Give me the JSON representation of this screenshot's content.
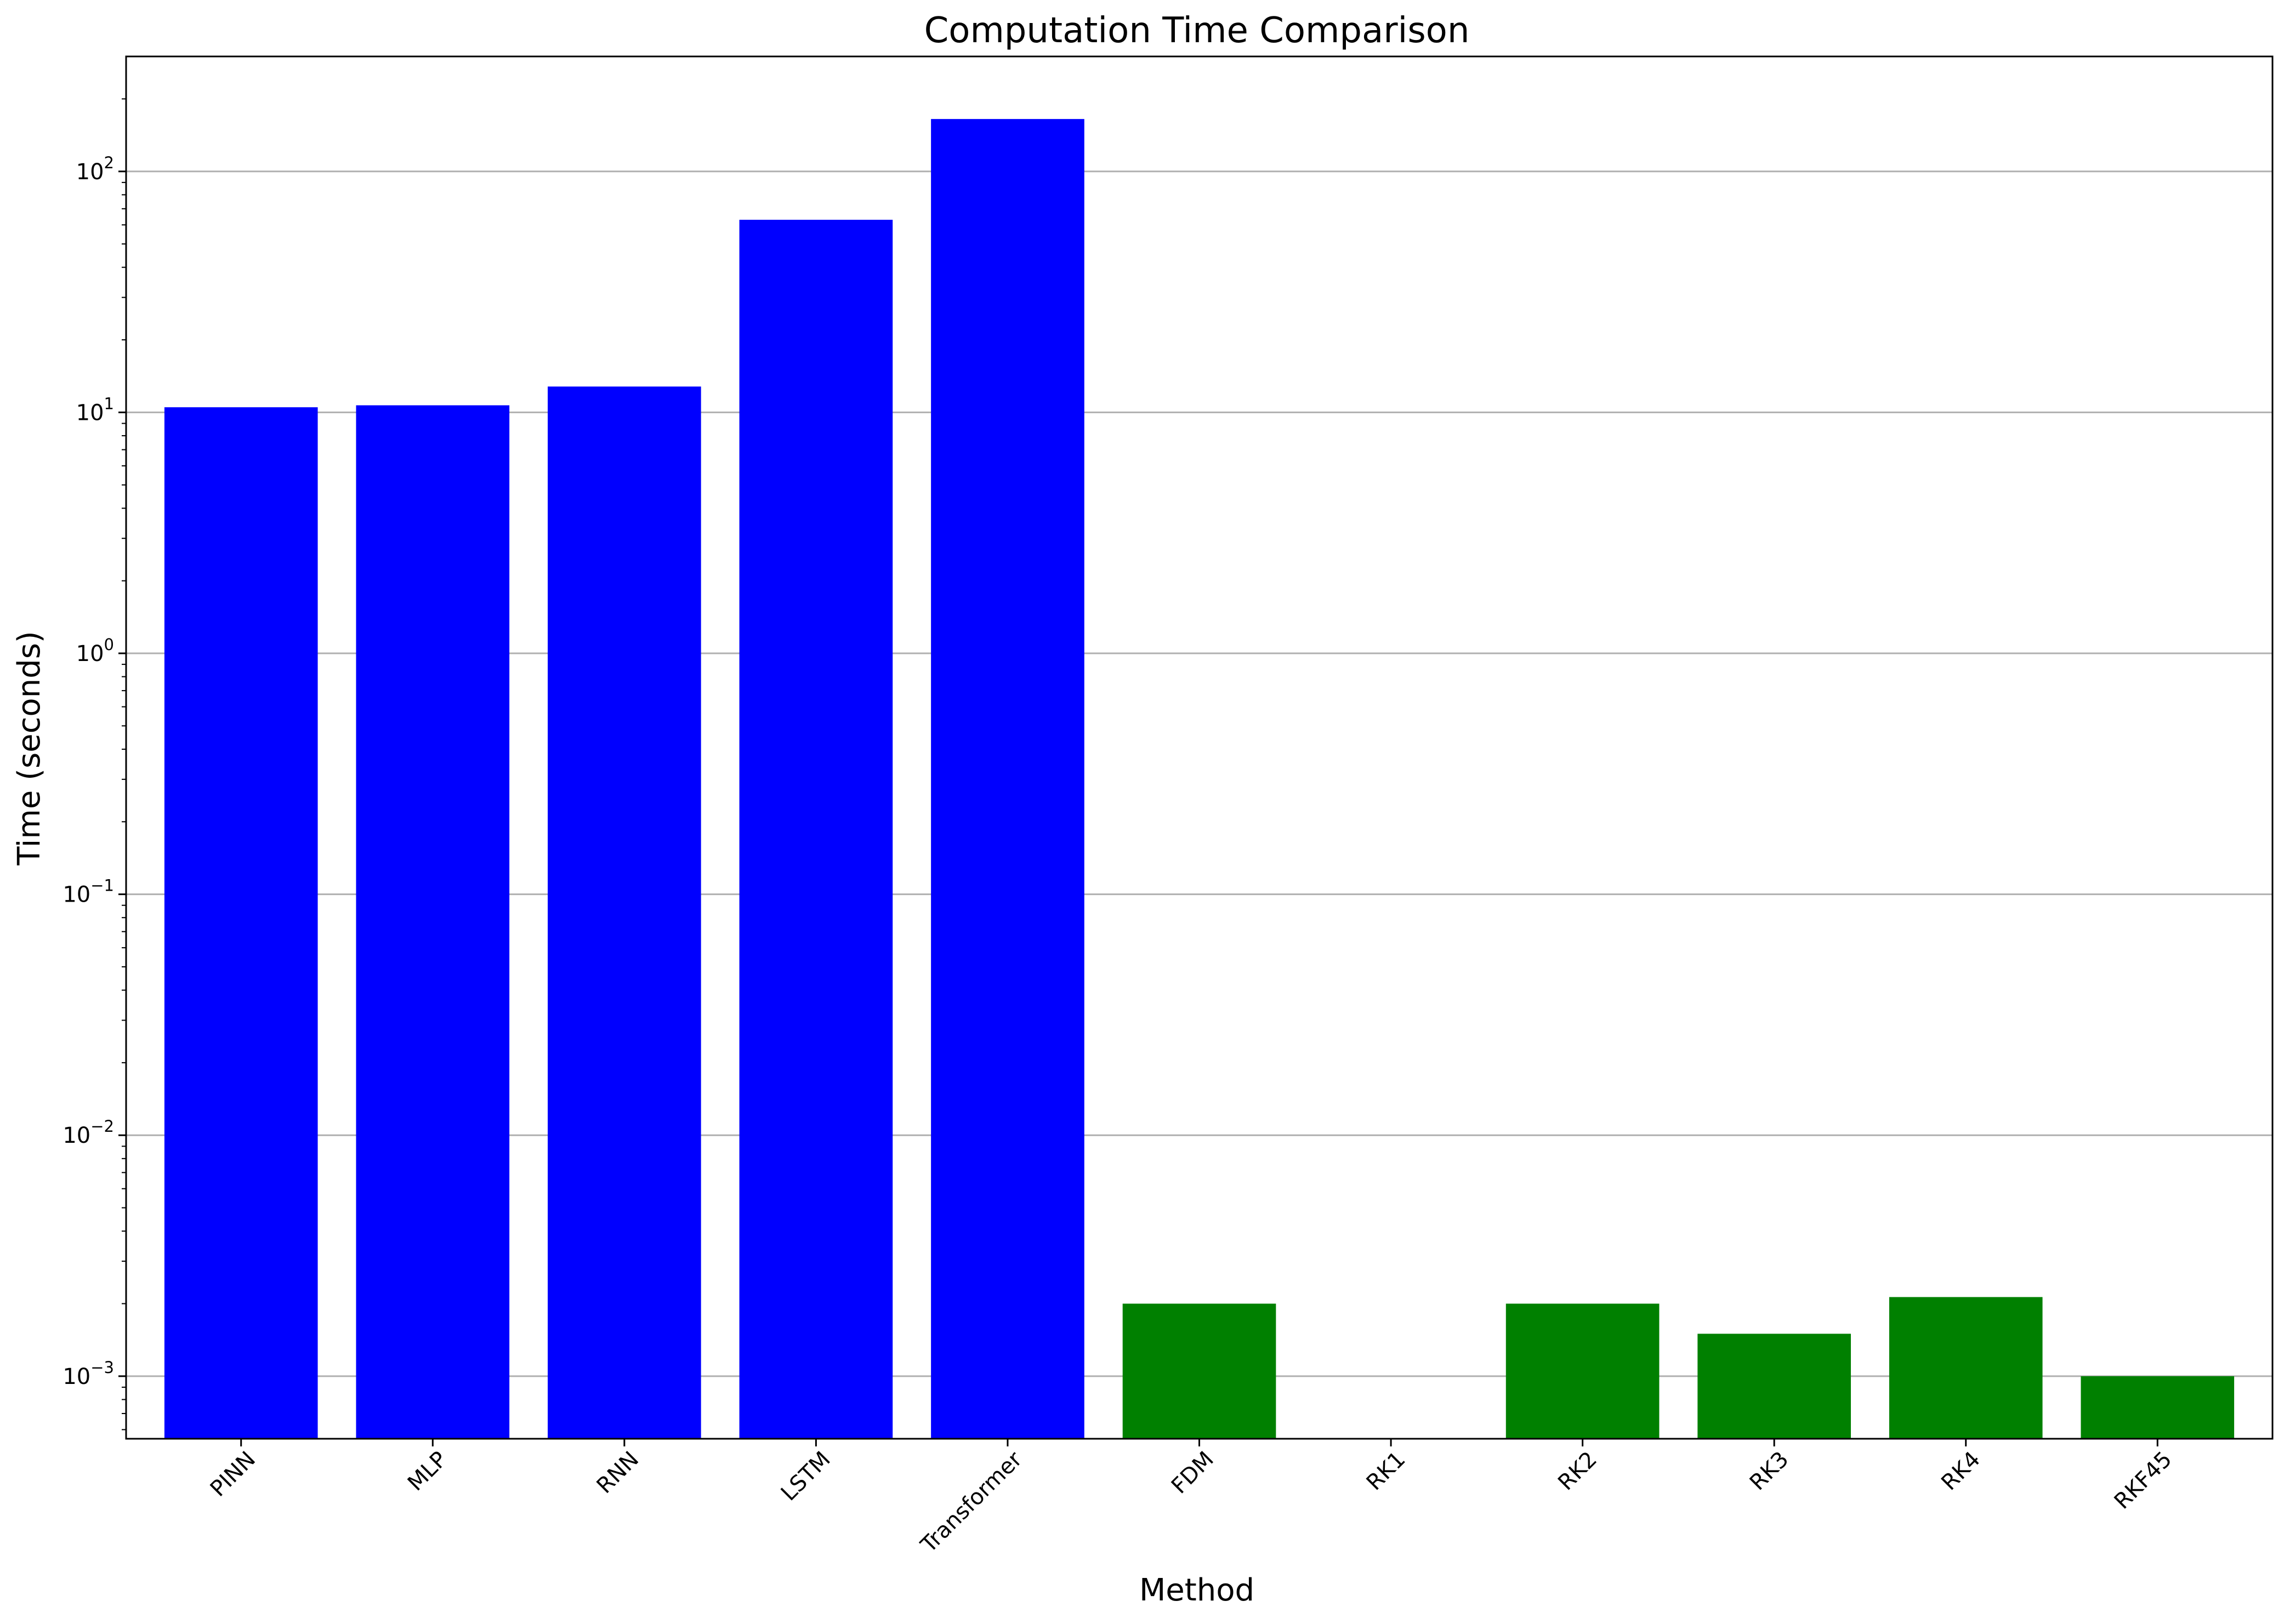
{
  "chart_data": {
    "type": "bar",
    "title": "Computation Time Comparison",
    "xlabel": "Method",
    "ylabel": "Time (seconds)",
    "yscale": "log",
    "ylim": [
      0.00055,
      300
    ],
    "grid": "y-major",
    "legend": "none",
    "categories": [
      "PINN",
      "MLP",
      "RNN",
      "LSTM",
      "Transformer",
      "FDM",
      "RK1",
      "RK2",
      "RK3",
      "RK4",
      "RKF45"
    ],
    "values": [
      10.5,
      10.7,
      12.8,
      63,
      165,
      0.002,
      0,
      0.002,
      0.0015,
      0.00213,
      0.001
    ],
    "bar_colors": [
      "#0000ff",
      "#0000ff",
      "#0000ff",
      "#0000ff",
      "#0000ff",
      "#008000",
      "#008000",
      "#008000",
      "#008000",
      "#008000",
      "#008000"
    ],
    "y_ticks": [
      {
        "value": 0.001,
        "base": "10",
        "exp": "−3"
      },
      {
        "value": 0.01,
        "base": "10",
        "exp": "−2"
      },
      {
        "value": 0.1,
        "base": "10",
        "exp": "−1"
      },
      {
        "value": 1,
        "base": "10",
        "exp": "0"
      },
      {
        "value": 10,
        "base": "10",
        "exp": "1"
      },
      {
        "value": 100,
        "base": "10",
        "exp": "2"
      }
    ]
  }
}
